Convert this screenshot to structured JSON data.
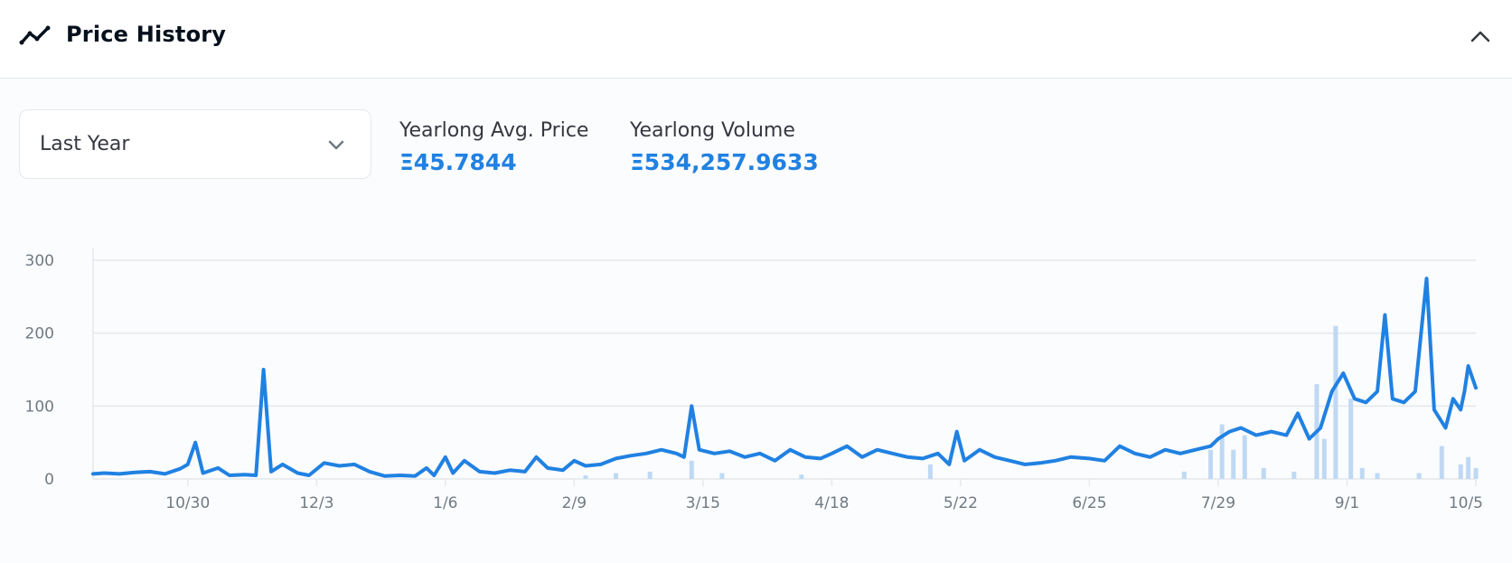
{
  "header": {
    "title": "Price History",
    "icon": "trending-line-icon",
    "collapse_icon": "chevron-up-icon"
  },
  "controls": {
    "range_select": {
      "value": "Last Year",
      "icon": "chevron-down-icon"
    }
  },
  "stats": {
    "avg_price": {
      "label": "Yearlong Avg. Price",
      "value": "Ξ45.7844"
    },
    "volume": {
      "label": "Yearlong Volume",
      "value": "Ξ534,257.9633"
    }
  },
  "colors": {
    "accent": "#2081e2",
    "line": "#2081e2",
    "volume_bars": "#bfd9f4",
    "gridline": "#e5e8eb",
    "tick_text": "#707a83"
  },
  "chart_data": {
    "type": "line",
    "title": "",
    "xlabel": "",
    "ylabel": "",
    "grid": true,
    "ylim": [
      0,
      300
    ],
    "yticks": [
      0,
      100,
      200,
      300
    ],
    "xlim": [
      "2021-10-05",
      "2022-10-05"
    ],
    "xtick_labels": [
      "10/30",
      "12/3",
      "1/6",
      "2/9",
      "3/15",
      "4/18",
      "5/22",
      "6/25",
      "7/29",
      "9/1",
      "10/5"
    ],
    "xtick_dates": [
      "2021-10-30",
      "2021-12-03",
      "2022-01-06",
      "2022-02-09",
      "2022-03-15",
      "2022-04-18",
      "2022-05-22",
      "2022-06-25",
      "2022-07-29",
      "2022-09-01",
      "2022-10-05"
    ],
    "series": [
      {
        "kind": "line",
        "points": [
          [
            "2021-10-05",
            7
          ],
          [
            "2021-10-08",
            8
          ],
          [
            "2021-10-12",
            7
          ],
          [
            "2021-10-16",
            9
          ],
          [
            "2021-10-20",
            10
          ],
          [
            "2021-10-24",
            7
          ],
          [
            "2021-10-28",
            14
          ],
          [
            "2021-10-30",
            20
          ],
          [
            "2021-11-01",
            50
          ],
          [
            "2021-11-03",
            8
          ],
          [
            "2021-11-07",
            15
          ],
          [
            "2021-11-10",
            5
          ],
          [
            "2021-11-14",
            6
          ],
          [
            "2021-11-17",
            5
          ],
          [
            "2021-11-19",
            150
          ],
          [
            "2021-11-21",
            10
          ],
          [
            "2021-11-24",
            20
          ],
          [
            "2021-11-28",
            8
          ],
          [
            "2021-12-01",
            5
          ],
          [
            "2021-12-05",
            22
          ],
          [
            "2021-12-09",
            18
          ],
          [
            "2021-12-13",
            20
          ],
          [
            "2021-12-17",
            10
          ],
          [
            "2021-12-21",
            4
          ],
          [
            "2021-12-25",
            5
          ],
          [
            "2021-12-29",
            4
          ],
          [
            "2022-01-01",
            15
          ],
          [
            "2022-01-03",
            5
          ],
          [
            "2022-01-06",
            30
          ],
          [
            "2022-01-08",
            8
          ],
          [
            "2022-01-11",
            25
          ],
          [
            "2022-01-15",
            10
          ],
          [
            "2022-01-19",
            8
          ],
          [
            "2022-01-23",
            12
          ],
          [
            "2022-01-27",
            10
          ],
          [
            "2022-01-30",
            30
          ],
          [
            "2022-02-02",
            15
          ],
          [
            "2022-02-06",
            12
          ],
          [
            "2022-02-09",
            25
          ],
          [
            "2022-02-12",
            18
          ],
          [
            "2022-02-16",
            20
          ],
          [
            "2022-02-20",
            28
          ],
          [
            "2022-02-24",
            32
          ],
          [
            "2022-02-28",
            35
          ],
          [
            "2022-03-04",
            40
          ],
          [
            "2022-03-08",
            35
          ],
          [
            "2022-03-10",
            30
          ],
          [
            "2022-03-12",
            100
          ],
          [
            "2022-03-14",
            40
          ],
          [
            "2022-03-18",
            35
          ],
          [
            "2022-03-22",
            38
          ],
          [
            "2022-03-26",
            30
          ],
          [
            "2022-03-30",
            35
          ],
          [
            "2022-04-03",
            25
          ],
          [
            "2022-04-07",
            40
          ],
          [
            "2022-04-11",
            30
          ],
          [
            "2022-04-15",
            28
          ],
          [
            "2022-04-18",
            35
          ],
          [
            "2022-04-22",
            45
          ],
          [
            "2022-04-26",
            30
          ],
          [
            "2022-04-30",
            40
          ],
          [
            "2022-05-04",
            35
          ],
          [
            "2022-05-08",
            30
          ],
          [
            "2022-05-12",
            28
          ],
          [
            "2022-05-16",
            35
          ],
          [
            "2022-05-19",
            20
          ],
          [
            "2022-05-21",
            65
          ],
          [
            "2022-05-23",
            25
          ],
          [
            "2022-05-27",
            40
          ],
          [
            "2022-05-31",
            30
          ],
          [
            "2022-06-04",
            25
          ],
          [
            "2022-06-08",
            20
          ],
          [
            "2022-06-12",
            22
          ],
          [
            "2022-06-16",
            25
          ],
          [
            "2022-06-20",
            30
          ],
          [
            "2022-06-25",
            28
          ],
          [
            "2022-06-29",
            25
          ],
          [
            "2022-07-03",
            45
          ],
          [
            "2022-07-07",
            35
          ],
          [
            "2022-07-11",
            30
          ],
          [
            "2022-07-15",
            40
          ],
          [
            "2022-07-19",
            35
          ],
          [
            "2022-07-23",
            40
          ],
          [
            "2022-07-27",
            45
          ],
          [
            "2022-07-29",
            55
          ],
          [
            "2022-08-01",
            65
          ],
          [
            "2022-08-04",
            70
          ],
          [
            "2022-08-08",
            60
          ],
          [
            "2022-08-12",
            65
          ],
          [
            "2022-08-16",
            60
          ],
          [
            "2022-08-19",
            90
          ],
          [
            "2022-08-22",
            55
          ],
          [
            "2022-08-25",
            70
          ],
          [
            "2022-08-28",
            120
          ],
          [
            "2022-08-31",
            145
          ],
          [
            "2022-09-03",
            110
          ],
          [
            "2022-09-06",
            105
          ],
          [
            "2022-09-09",
            120
          ],
          [
            "2022-09-11",
            225
          ],
          [
            "2022-09-13",
            110
          ],
          [
            "2022-09-16",
            105
          ],
          [
            "2022-09-19",
            120
          ],
          [
            "2022-09-22",
            275
          ],
          [
            "2022-09-24",
            95
          ],
          [
            "2022-09-27",
            70
          ],
          [
            "2022-09-29",
            110
          ],
          [
            "2022-10-01",
            95
          ],
          [
            "2022-10-02",
            120
          ],
          [
            "2022-10-03",
            155
          ],
          [
            "2022-10-04",
            140
          ],
          [
            "2022-10-05",
            125
          ]
        ]
      },
      {
        "kind": "bar",
        "points": [
          [
            "2022-02-12",
            5
          ],
          [
            "2022-02-20",
            8
          ],
          [
            "2022-03-01",
            10
          ],
          [
            "2022-03-12",
            25
          ],
          [
            "2022-03-20",
            8
          ],
          [
            "2022-04-10",
            6
          ],
          [
            "2022-05-14",
            20
          ],
          [
            "2022-07-20",
            10
          ],
          [
            "2022-07-27",
            40
          ],
          [
            "2022-07-30",
            75
          ],
          [
            "2022-08-02",
            40
          ],
          [
            "2022-08-05",
            60
          ],
          [
            "2022-08-10",
            15
          ],
          [
            "2022-08-18",
            10
          ],
          [
            "2022-08-24",
            130
          ],
          [
            "2022-08-26",
            55
          ],
          [
            "2022-08-29",
            210
          ],
          [
            "2022-09-02",
            110
          ],
          [
            "2022-09-05",
            15
          ],
          [
            "2022-09-09",
            8
          ],
          [
            "2022-09-20",
            8
          ],
          [
            "2022-09-26",
            45
          ],
          [
            "2022-10-01",
            20
          ],
          [
            "2022-10-03",
            30
          ],
          [
            "2022-10-05",
            15
          ]
        ]
      }
    ]
  }
}
